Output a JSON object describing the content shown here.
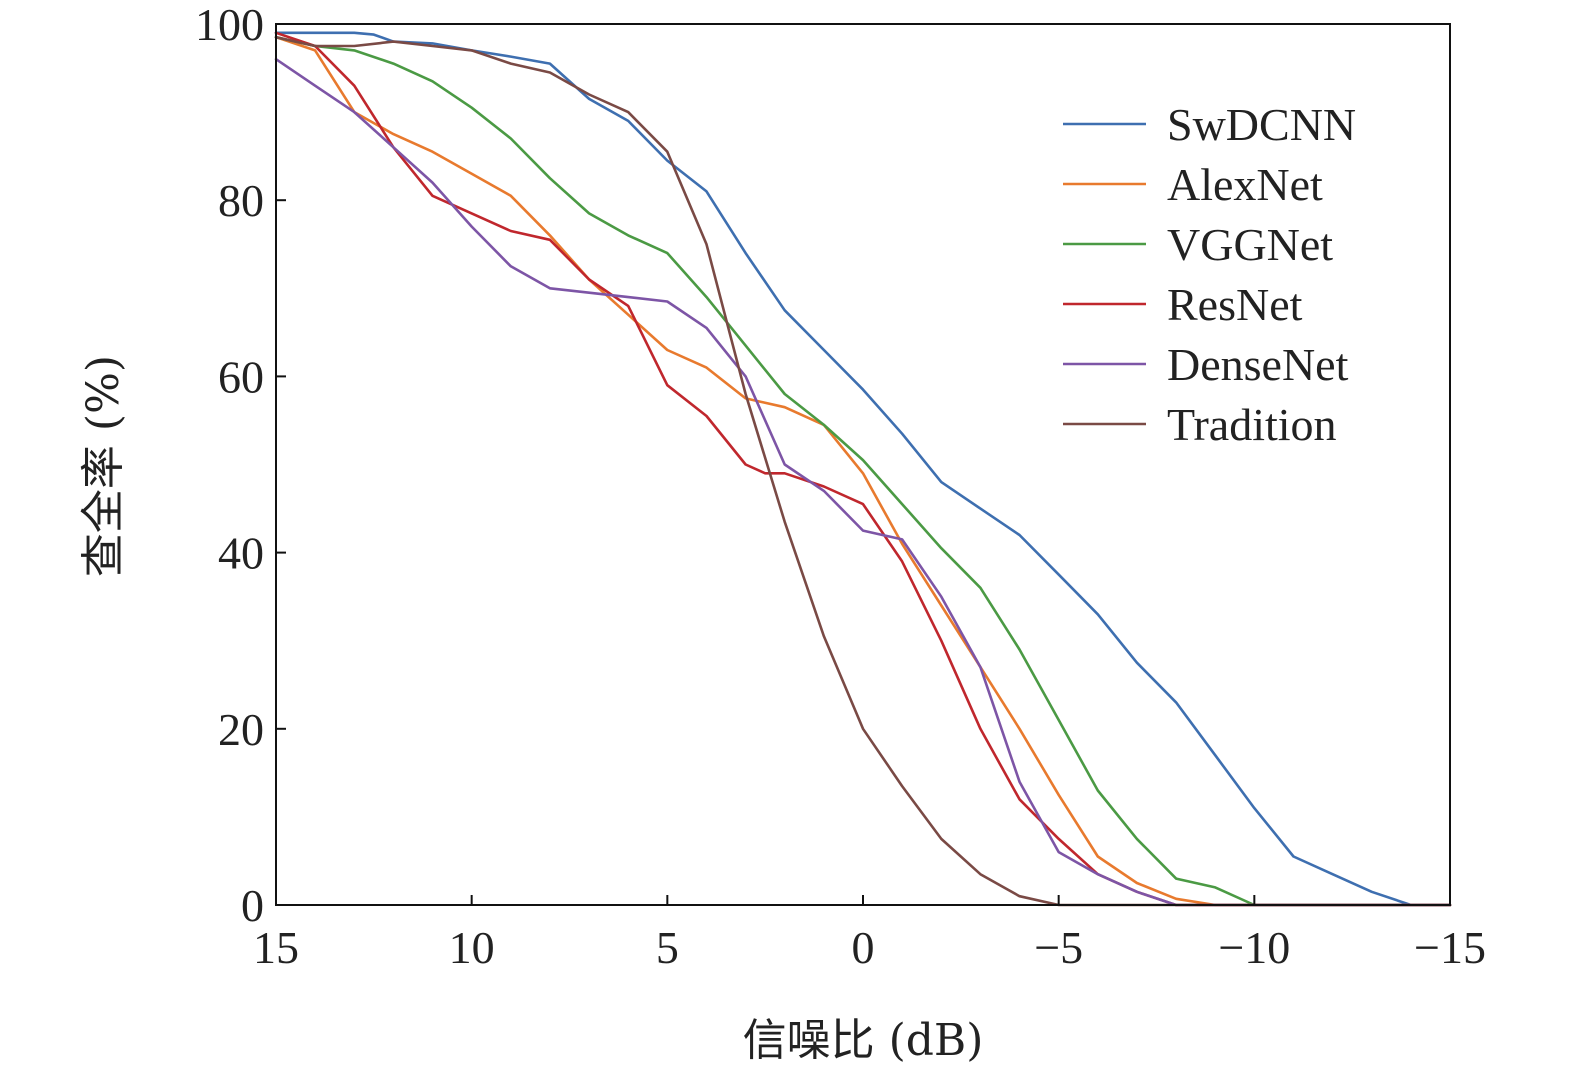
{
  "chart_data": {
    "type": "line",
    "xlabel": "信噪比 (dB)",
    "ylabel": "查全率 (%)",
    "xlim": [
      15,
      -15
    ],
    "ylim": [
      0,
      100
    ],
    "xticks": [
      15,
      10,
      5,
      0,
      -5,
      -10,
      -15
    ],
    "xtick_labels": [
      "15",
      "10",
      "5",
      "0",
      "−5",
      "−10",
      "−15"
    ],
    "yticks": [
      0,
      20,
      40,
      60,
      80,
      100
    ],
    "ytick_labels": [
      "0",
      "20",
      "40",
      "60",
      "80",
      "100"
    ],
    "grid": false,
    "legend": "top-right",
    "series": [
      {
        "name": "SwDCNN",
        "color": "#3e6fb0",
        "x": [
          15,
          13,
          12.5,
          12,
          11,
          10,
          9,
          8,
          7,
          6,
          5,
          4,
          3,
          2,
          1,
          0,
          -1,
          -2,
          -3,
          -4,
          -5,
          -6,
          -7,
          -8,
          -9,
          -10,
          -11,
          -12,
          -13,
          -14,
          -15
        ],
        "y": [
          99,
          99,
          98.8,
          98,
          97.8,
          97,
          96.3,
          95.5,
          91.5,
          89,
          84.5,
          81,
          74,
          67.5,
          63,
          58.5,
          53.5,
          48,
          45,
          42,
          37.5,
          33,
          27.5,
          23,
          17,
          11,
          5.5,
          3.5,
          1.5,
          0,
          0
        ]
      },
      {
        "name": "AlexNet",
        "color": "#e87a2e",
        "x": [
          15,
          14,
          13,
          12,
          11,
          10,
          9,
          8,
          7,
          6,
          5,
          4,
          3,
          2,
          1,
          0,
          -1,
          -2,
          -3,
          -4,
          -5,
          -6,
          -7,
          -8,
          -9,
          -10,
          -15
        ],
        "y": [
          98.5,
          97,
          90,
          87.5,
          85.5,
          83,
          80.5,
          76,
          71,
          67,
          63,
          61,
          57.5,
          56.5,
          54.5,
          49,
          41,
          34,
          27,
          20,
          12.5,
          5.5,
          2.5,
          0.7,
          0,
          0,
          0
        ]
      },
      {
        "name": "VGGNet",
        "color": "#4b9a44",
        "x": [
          15,
          14,
          13,
          12,
          11,
          10,
          9,
          8,
          7,
          6,
          5,
          4,
          3,
          2,
          1,
          0,
          -1,
          -2,
          -3,
          -4,
          -5,
          -6,
          -7,
          -8,
          -9,
          -10,
          -15
        ],
        "y": [
          98.5,
          97.5,
          97,
          95.5,
          93.5,
          90.5,
          87,
          82.5,
          78.5,
          76,
          74,
          69,
          63.5,
          58,
          54.5,
          50.5,
          45.5,
          40.5,
          36,
          29,
          21,
          13,
          7.5,
          3,
          2,
          0,
          0
        ]
      },
      {
        "name": "ResNet",
        "color": "#c0272d",
        "x": [
          15,
          14,
          13,
          12,
          11,
          10,
          9,
          8,
          7,
          6,
          5,
          4,
          3,
          2.5,
          2,
          1,
          0,
          -1,
          -2,
          -3,
          -4,
          -5,
          -6,
          -7,
          -8,
          -9,
          -10,
          -15
        ],
        "y": [
          99,
          97.5,
          93,
          86,
          80.5,
          78.5,
          76.5,
          75.5,
          71,
          68,
          59,
          55.5,
          50,
          49,
          49,
          47.5,
          45.5,
          39,
          30,
          20,
          12,
          7.5,
          3.5,
          1.5,
          0,
          0,
          0,
          0
        ]
      },
      {
        "name": "DenseNet",
        "color": "#7d55a6",
        "x": [
          15,
          14,
          13,
          12,
          11,
          10,
          9,
          8,
          7,
          6,
          5,
          4,
          3,
          2,
          1,
          0,
          -1,
          -2,
          -3,
          -4,
          -5,
          -6,
          -7,
          -8,
          -9,
          -10,
          -15
        ],
        "y": [
          96,
          93,
          90,
          86,
          82,
          77,
          72.5,
          70,
          69.5,
          69,
          68.5,
          65.5,
          60,
          50,
          47,
          42.5,
          41.5,
          35,
          27,
          14,
          6,
          3.5,
          1.5,
          0,
          0,
          0,
          0
        ]
      },
      {
        "name": "Tradition",
        "color": "#7a4a45",
        "x": [
          15,
          14,
          13,
          12,
          11,
          10,
          9,
          8,
          7,
          6,
          5,
          4,
          3,
          2,
          1,
          0,
          -1,
          -2,
          -3,
          -4,
          -5,
          -6,
          -7,
          -15
        ],
        "y": [
          98.5,
          97.5,
          97.5,
          98,
          97.5,
          97,
          95.5,
          94.5,
          92,
          90,
          85.5,
          75,
          58,
          43.5,
          30.5,
          20,
          13.5,
          7.5,
          3.5,
          1,
          0,
          0,
          0,
          0
        ]
      }
    ]
  }
}
